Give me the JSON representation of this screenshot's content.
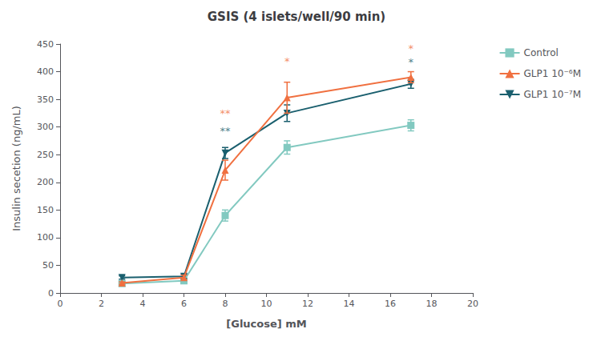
{
  "chart_data": {
    "type": "line",
    "title": "GSIS (4 islets/well/90 min)",
    "xlabel": "[Glucose] mM",
    "ylabel": "Insulin secetion (ng/mL)",
    "x": [
      3,
      6,
      8,
      11,
      17
    ],
    "xlim": [
      0,
      20
    ],
    "xticks": [
      0,
      2,
      4,
      6,
      8,
      10,
      12,
      14,
      16,
      18,
      20
    ],
    "ylim": [
      0,
      450
    ],
    "yticks": [
      0,
      50,
      100,
      150,
      200,
      250,
      300,
      350,
      400,
      450
    ],
    "grid": false,
    "legend": "right",
    "series": [
      {
        "name": "Control",
        "color": "#82C9C0",
        "marker": "square",
        "values": [
          17,
          22,
          140,
          263,
          303
        ],
        "yerr": [
          3,
          3,
          10,
          12,
          10
        ]
      },
      {
        "name": "GLP1 10⁻⁶M",
        "color": "#F07040",
        "marker": "triangle-up",
        "values": [
          18,
          28,
          222,
          353,
          390
        ],
        "yerr": [
          2,
          4,
          18,
          28,
          10
        ]
      },
      {
        "name": "GLP1 10⁻⁷M",
        "color": "#1A5F6E",
        "marker": "triangle-down",
        "values": [
          28,
          30,
          253,
          325,
          378
        ],
        "yerr": [
          3,
          4,
          10,
          15,
          8
        ]
      }
    ],
    "annotations": [
      {
        "text": "**",
        "x": 8.0,
        "y": 315,
        "color": "#F07040"
      },
      {
        "text": "**",
        "x": 8.0,
        "y": 283,
        "color": "#1A5F6E"
      },
      {
        "text": "*",
        "x": 11.0,
        "y": 410,
        "color": "#F07040"
      },
      {
        "text": "*",
        "x": 17.0,
        "y": 432,
        "color": "#F07040"
      },
      {
        "text": "*",
        "x": 17.0,
        "y": 408,
        "color": "#1A5F6E"
      }
    ]
  }
}
